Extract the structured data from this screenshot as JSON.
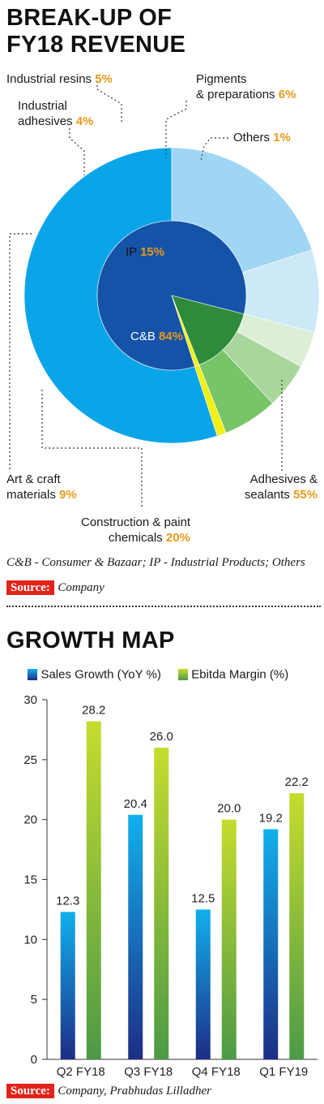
{
  "colors": {
    "accent_orange": "#e89a1b",
    "source_red": "#e2231a",
    "cb_blue": "#1553a8",
    "ip_green": "#2e8b3c",
    "adhesives_blue": "#0aa5e8",
    "construction_blue": "#9fd6f3",
    "art_blue": "#cde9f8",
    "ind_adhesives": "#dcefd6",
    "ind_resins": "#a9d79b",
    "pigments": "#78c468",
    "others": "#f1ef13"
  },
  "section1": {
    "title_line1": "BREAK-UP OF",
    "title_line2": "FY18 REVENUE",
    "footnote": "C&B - Consumer & Bazaar; IP - Industrial Products; Others",
    "source_label": "Source:",
    "source_text": "Company"
  },
  "section2": {
    "title": "GROWTH MAP",
    "source_label": "Source:",
    "source_text": "Company, Prabhudas Lilladher"
  },
  "chart_data": [
    {
      "type": "pie",
      "subtype": "donut",
      "inner": [
        {
          "name": "C&B",
          "value": 84,
          "value_label": "84%",
          "color": "#1553a8"
        },
        {
          "name": "IP",
          "value": 15,
          "value_label": "15%",
          "color": "#2e8b3c"
        },
        {
          "name": "Others",
          "value": 1,
          "value_label": "",
          "color": "#f1ef13"
        }
      ],
      "outer": [
        {
          "name": "Adhesives & sealants",
          "line1": "Adhesives &",
          "line2": "sealants",
          "value": 55,
          "value_label": "55%",
          "color": "#0aa5e8"
        },
        {
          "name": "Construction & paint chemicals",
          "line1": "Construction & paint",
          "line2": "chemicals",
          "value": 20,
          "value_label": "20%",
          "color": "#9fd6f3"
        },
        {
          "name": "Art & craft materials",
          "line1": "Art & craft",
          "line2": "materials",
          "value": 9,
          "value_label": "9%",
          "color": "#cde9f8"
        },
        {
          "name": "Industrial adhesives",
          "line1": "Industrial",
          "line2": "adhesives",
          "value": 4,
          "value_label": "4%",
          "color": "#dcefd6"
        },
        {
          "name": "Industrial resins",
          "line1": "Industrial resins",
          "line2": "",
          "value": 5,
          "value_label": "5%",
          "color": "#a9d79b"
        },
        {
          "name": "Pigments & preparations",
          "line1": "Pigments",
          "line2": "& preparations",
          "value": 6,
          "value_label": "6%",
          "color": "#78c468"
        },
        {
          "name": "Others",
          "line1": "Others",
          "line2": "",
          "value": 1,
          "value_label": "1%",
          "color": "#f1ef13"
        }
      ]
    },
    {
      "type": "bar",
      "categories": [
        "Q2 FY18",
        "Q3 FY18",
        "Q4 FY18",
        "Q1 FY19"
      ],
      "series": [
        {
          "name": "Sales Growth (YoY %)",
          "values": [
            12.3,
            20.4,
            12.5,
            19.2
          ],
          "labels": [
            "12.3",
            "20.4",
            "12.5",
            "19.2"
          ],
          "color_top": "#12b0ee",
          "color_bottom": "#1d2d85"
        },
        {
          "name": "Ebitda Margin (%)",
          "values": [
            28.2,
            26.0,
            20.0,
            22.2
          ],
          "labels": [
            "28.2",
            "26.0",
            "20.0",
            "22.2"
          ],
          "color_top": "#c5dc2e",
          "color_bottom": "#4c9a46"
        }
      ],
      "ylim": [
        0,
        30
      ],
      "yticks": [
        "0",
        "5",
        "10",
        "15",
        "20",
        "25",
        "30"
      ],
      "grid": false,
      "legend_position": "top"
    }
  ]
}
